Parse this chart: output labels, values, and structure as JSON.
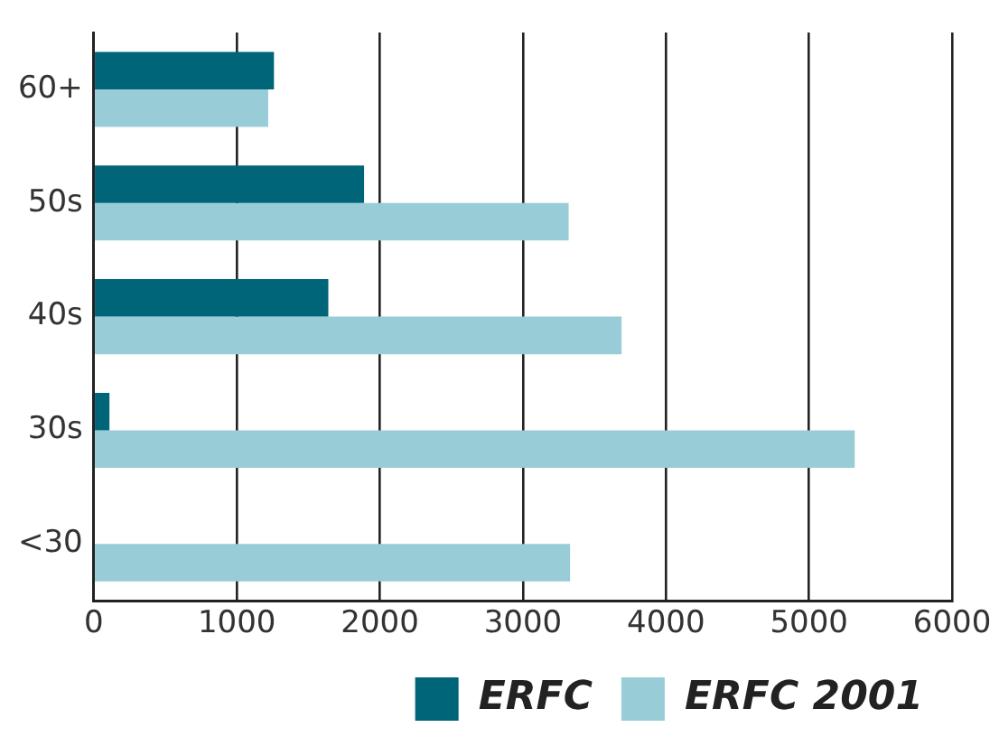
{
  "chart_data": {
    "type": "bar",
    "orientation": "horizontal",
    "categories": [
      "60+",
      "50s",
      "40s",
      "30s",
      "<30"
    ],
    "series": [
      {
        "name": "ERFC",
        "color": "#006579",
        "values": [
          1260,
          1890,
          1640,
          110,
          0
        ]
      },
      {
        "name": "ERFC 2001",
        "color": "#98cdd7",
        "values": [
          1220,
          3320,
          3690,
          5320,
          3330
        ]
      }
    ],
    "xlim": [
      0,
      6000
    ],
    "xticks": [
      0,
      1000,
      2000,
      3000,
      4000,
      5000,
      6000
    ],
    "grid": "x",
    "legend": "bottom right"
  }
}
